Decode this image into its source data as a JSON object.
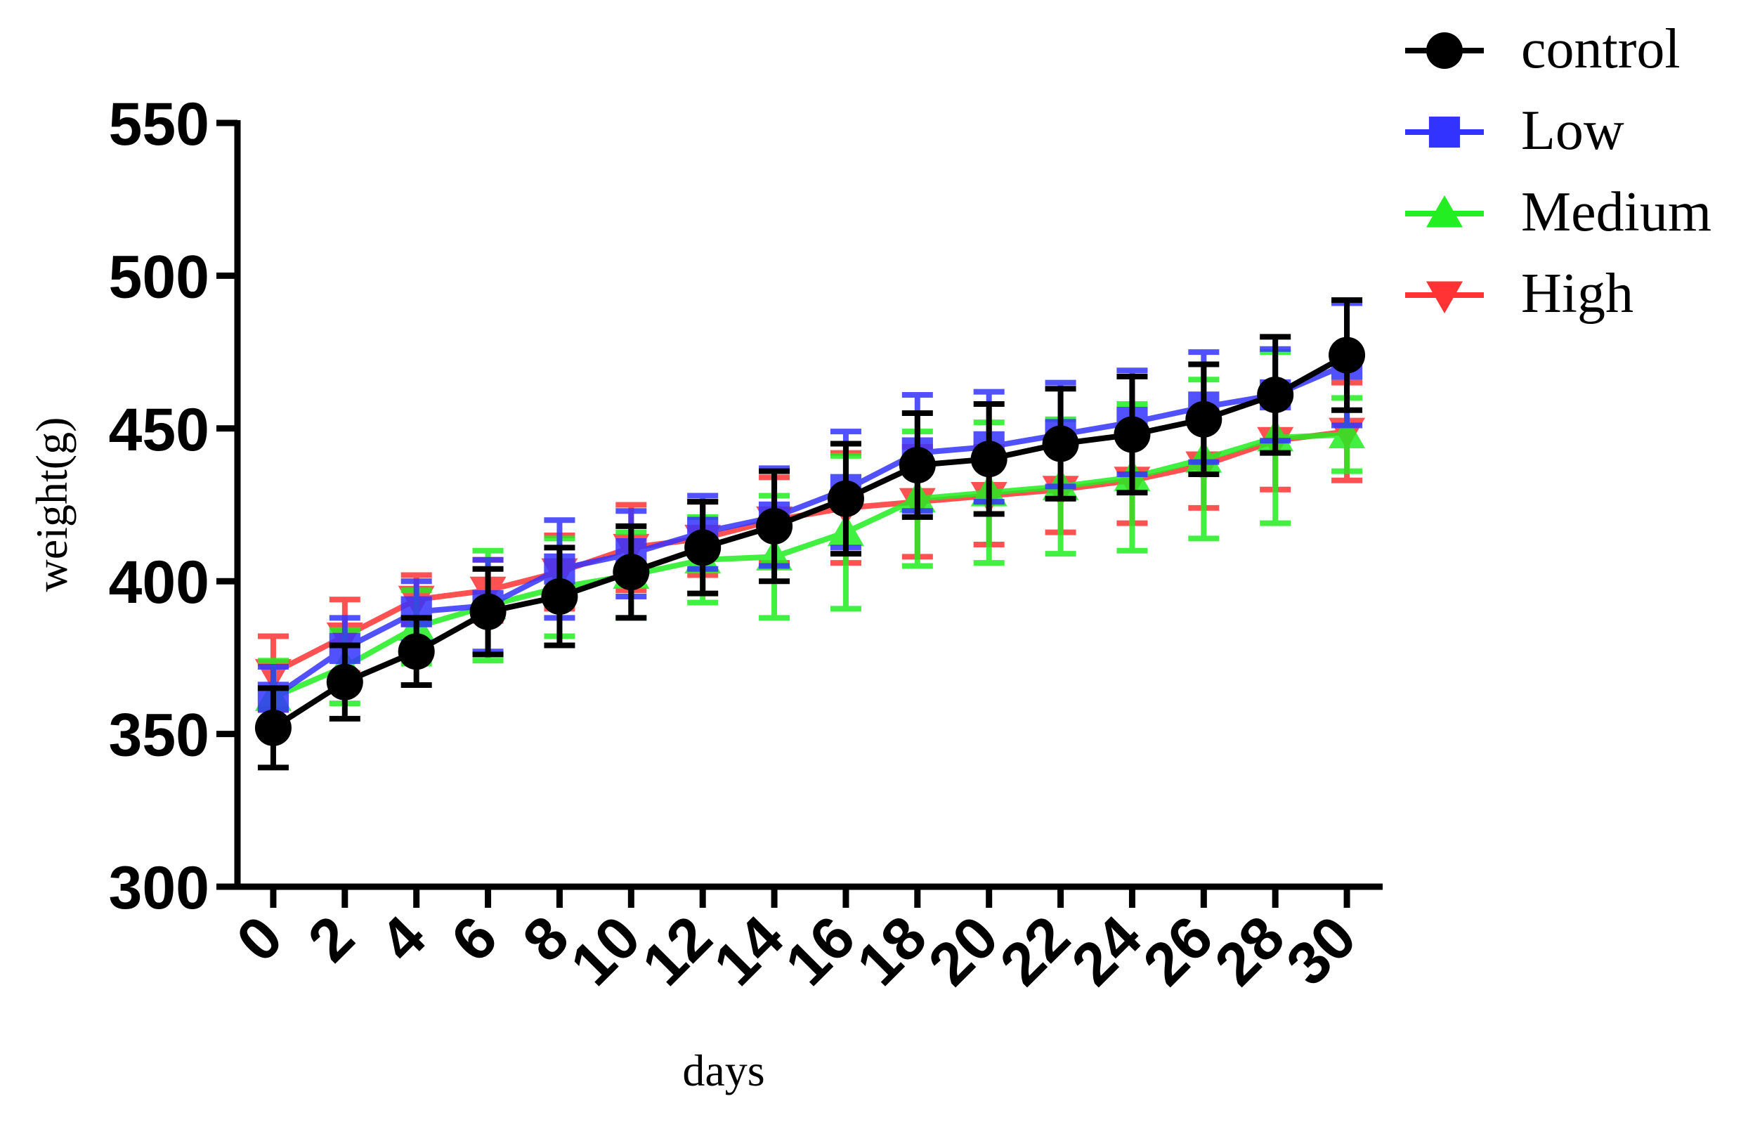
{
  "chart_data": {
    "type": "line",
    "x_label": "days",
    "y_label": "weight(g)",
    "x": [
      0,
      2,
      4,
      6,
      8,
      10,
      12,
      14,
      16,
      18,
      20,
      22,
      24,
      26,
      28,
      30
    ],
    "xlim": [
      -1,
      31
    ],
    "xticks": [
      0,
      2,
      4,
      6,
      8,
      10,
      12,
      14,
      16,
      18,
      20,
      22,
      24,
      26,
      28,
      30
    ],
    "ylim": [
      300,
      550
    ],
    "yticks": [
      300,
      350,
      400,
      450,
      500,
      550
    ],
    "series": [
      {
        "name": "control",
        "color": "#000000",
        "marker": "circle",
        "values": [
          352,
          367,
          377,
          390,
          395,
          403,
          411,
          418,
          427,
          438,
          440,
          445,
          448,
          453,
          461,
          474
        ],
        "errors": [
          13,
          12,
          11,
          14,
          16,
          15,
          15,
          18,
          18,
          17,
          18,
          18,
          19,
          18,
          19,
          18
        ]
      },
      {
        "name": "Low",
        "color": "#3333ff",
        "marker": "square",
        "values": [
          362,
          378,
          390,
          392,
          404,
          409,
          416,
          421,
          430,
          442,
          444,
          448,
          452,
          457,
          461,
          471
        ],
        "errors": [
          10,
          10,
          10,
          15,
          16,
          14,
          12,
          16,
          19,
          19,
          18,
          17,
          17,
          18,
          15,
          20
        ]
      },
      {
        "name": "Medium",
        "color": "#22ee22",
        "marker": "triangle",
        "values": [
          362,
          372,
          385,
          392,
          398,
          402,
          407,
          408,
          416,
          427,
          429,
          431,
          434,
          440,
          447,
          448
        ],
        "errors": [
          12,
          12,
          12,
          18,
          16,
          14,
          14,
          20,
          25,
          22,
          23,
          22,
          24,
          26,
          28,
          12
        ]
      },
      {
        "name": "High",
        "color": "#ff3333",
        "marker": "triangle-down",
        "values": [
          370,
          382,
          394,
          397,
          403,
          411,
          414,
          420,
          424,
          426,
          428,
          430,
          433,
          438,
          446,
          449
        ],
        "errors": [
          12,
          12,
          8,
          10,
          12,
          14,
          12,
          14,
          18,
          18,
          16,
          14,
          14,
          14,
          16,
          16
        ]
      }
    ]
  }
}
